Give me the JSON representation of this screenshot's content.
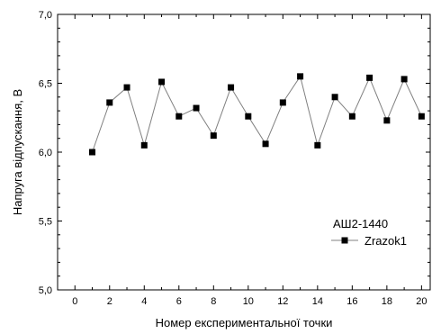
{
  "chart_data": {
    "type": "line",
    "title": "",
    "xlabel": "Номер експериментальної точки",
    "ylabel": "Напруга відпускання, В",
    "xlim": [
      -1,
      20.5
    ],
    "ylim": [
      5.0,
      7.0
    ],
    "x_ticks": [
      "0",
      "2",
      "4",
      "6",
      "8",
      "10",
      "12",
      "14",
      "16",
      "18",
      "20"
    ],
    "y_ticks": [
      "5,0",
      "5,5",
      "6,0",
      "6,5",
      "7,0"
    ],
    "legend": {
      "title": "АШ2-1440",
      "position": "lower-right",
      "entries": [
        "Zrazok1"
      ]
    },
    "series": [
      {
        "name": "Zrazok1",
        "marker": "square",
        "color": "#000000",
        "line_color": "#808080",
        "x": [
          1,
          2,
          3,
          4,
          5,
          6,
          7,
          8,
          9,
          10,
          11,
          12,
          13,
          14,
          15,
          16,
          17,
          18,
          19,
          20
        ],
        "y": [
          6.0,
          6.36,
          6.47,
          6.05,
          6.51,
          6.26,
          6.32,
          6.12,
          6.47,
          6.26,
          6.06,
          6.36,
          6.55,
          6.05,
          6.4,
          6.26,
          6.54,
          6.23,
          6.53,
          6.26
        ]
      }
    ]
  }
}
